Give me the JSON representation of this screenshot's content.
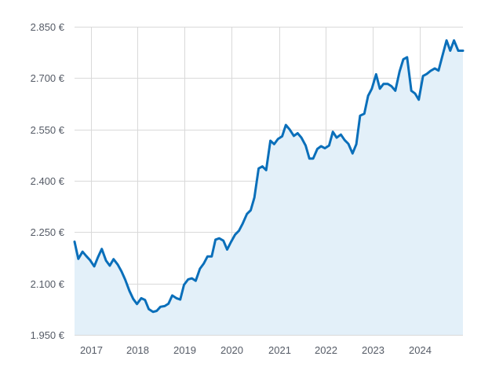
{
  "chart_data": {
    "type": "area",
    "title": "",
    "xlabel": "",
    "ylabel": "",
    "x_tick_labels": [
      "2017",
      "2018",
      "2019",
      "2020",
      "2021",
      "2022",
      "2023",
      "2024"
    ],
    "y_tick_values": [
      1950,
      2100,
      2250,
      2400,
      2550,
      2700,
      2850
    ],
    "y_tick_labels": [
      "1.950 €",
      "2.100 €",
      "2.250 €",
      "2.400 €",
      "2.550 €",
      "2.700 €",
      "2.850 €"
    ],
    "xlim": [
      2016.65,
      2024.92
    ],
    "ylim": [
      1950,
      2850
    ],
    "grid": true,
    "line_color": "#0a6fba",
    "fill_color": "#e3f0f9",
    "series": [
      {
        "x": [
          2016.65,
          2016.73,
          2016.82,
          2016.9,
          2016.98,
          2017.07,
          2017.15,
          2017.23,
          2017.32,
          2017.4,
          2017.48,
          2017.57,
          2017.65,
          2017.73,
          2017.82,
          2017.9,
          2017.98,
          2018.07,
          2018.15,
          2018.23,
          2018.32,
          2018.4,
          2018.48,
          2018.57,
          2018.65,
          2018.73,
          2018.82,
          2018.9,
          2018.98,
          2019.07,
          2019.15,
          2019.23,
          2019.32,
          2019.4,
          2019.48,
          2019.57,
          2019.65,
          2019.73,
          2019.82,
          2019.9,
          2019.98,
          2020.07,
          2020.15,
          2020.23,
          2020.32,
          2020.4,
          2020.48,
          2020.57,
          2020.65,
          2020.73,
          2020.82,
          2020.9,
          2020.98,
          2021.07,
          2021.15,
          2021.23,
          2021.32,
          2021.4,
          2021.48,
          2021.57,
          2021.65,
          2021.73,
          2021.82,
          2021.9,
          2021.98,
          2022.07,
          2022.15,
          2022.23,
          2022.32,
          2022.4,
          2022.48,
          2022.57,
          2022.65,
          2022.73,
          2022.82,
          2022.9,
          2022.98,
          2023.07,
          2023.15,
          2023.23,
          2023.32,
          2023.4,
          2023.48,
          2023.57,
          2023.65,
          2023.73,
          2023.82,
          2023.9,
          2023.98,
          2024.07,
          2024.15,
          2024.23,
          2024.32,
          2024.4,
          2024.48,
          2024.57,
          2024.65,
          2024.73,
          2024.82,
          2024.9,
          2024.92
        ],
        "values": [
          2222,
          2172,
          2193,
          2180,
          2168,
          2150,
          2177,
          2201,
          2167,
          2152,
          2171,
          2155,
          2135,
          2111,
          2078,
          2055,
          2040,
          2057,
          2052,
          2025,
          2017,
          2020,
          2032,
          2034,
          2041,
          2065,
          2057,
          2053,
          2096,
          2112,
          2115,
          2108,
          2143,
          2158,
          2179,
          2179,
          2228,
          2232,
          2225,
          2199,
          2221,
          2243,
          2254,
          2275,
          2303,
          2314,
          2351,
          2436,
          2442,
          2431,
          2517,
          2507,
          2522,
          2530,
          2563,
          2550,
          2531,
          2539,
          2526,
          2503,
          2465,
          2465,
          2493,
          2501,
          2495,
          2503,
          2543,
          2526,
          2535,
          2519,
          2508,
          2480,
          2507,
          2590,
          2596,
          2648,
          2669,
          2711,
          2669,
          2683,
          2683,
          2676,
          2663,
          2719,
          2755,
          2761,
          2663,
          2655,
          2637,
          2706,
          2712,
          2721,
          2728,
          2722,
          2764,
          2810,
          2780,
          2810,
          2780,
          2780,
          2780
        ]
      }
    ]
  }
}
